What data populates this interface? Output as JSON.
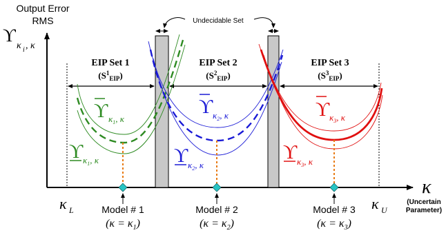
{
  "colors": {
    "axis": "#000000",
    "model1": "#2e8b22",
    "model2": "#1a1ad6",
    "model3": "#e01010",
    "marker": "#27c4c4",
    "connector": "#e87a12",
    "undecidable_fill": "#c8c8c8"
  },
  "axis": {
    "y_label_line1": "Output Error",
    "y_label_line2": "RMS",
    "y_symbol": "ϒ",
    "y_subscript": "κ",
    "y_sub_index": "i",
    "y_sub_suffix": ", κ",
    "x_symbol": "κ",
    "x_caption_line1": "(Uncertain",
    "x_caption_line2": "Parameter)",
    "kappa_l": "κ",
    "kappa_l_sub": "L",
    "kappa_u": "κ",
    "kappa_u_sub": "U"
  },
  "undecidable_label": "Undecidable Set",
  "sets": [
    {
      "title": "EIP Set 1",
      "sub_open": "(S",
      "sup": "1",
      "sub": "EIP",
      "close": ")"
    },
    {
      "title": "EIP Set 2",
      "sub_open": "(S",
      "sup": "2",
      "sub": "EIP",
      "close": ")"
    },
    {
      "title": "EIP Set 3",
      "sub_open": "(S",
      "sup": "3",
      "sub": "EIP",
      "close": ")"
    }
  ],
  "models": [
    {
      "label": "Model # 1",
      "eq_open": "(κ = κ",
      "eq_index": "1",
      "eq_close": ")",
      "upper_symbol": "ϒ",
      "lower_symbol": "ϒ",
      "sub_k": "κ",
      "sub_index": "1",
      "sub_suffix": ", κ"
    },
    {
      "label": "Model # 2",
      "eq_open": "(κ = κ",
      "eq_index": "2",
      "eq_close": ")",
      "upper_symbol": "ϒ",
      "lower_symbol": "ϒ",
      "sub_k": "κ",
      "sub_index": "2",
      "sub_suffix": ", κ"
    },
    {
      "label": "Model # 3",
      "eq_open": "(κ = κ",
      "eq_index": "3",
      "eq_close": ")",
      "upper_symbol": "ϒ",
      "lower_symbol": "ϒ",
      "sub_k": "κ",
      "sub_index": "3",
      "sub_suffix": ", κ"
    }
  ]
}
